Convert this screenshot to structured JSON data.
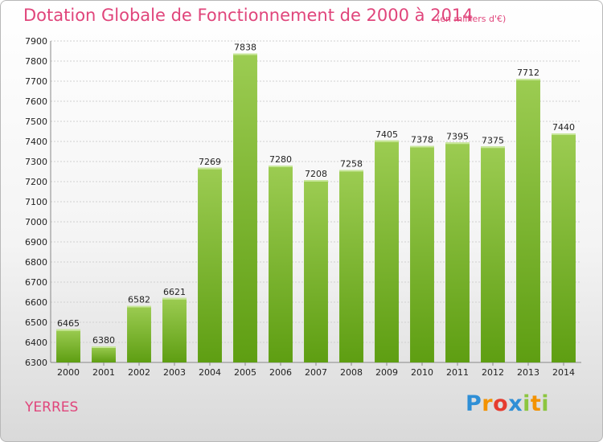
{
  "chart_data": {
    "type": "bar",
    "title": "Dotation Globale de Fonctionnement de 2000 à 2014",
    "subtitle": "(en milliers d'€)",
    "categories": [
      "2000",
      "2001",
      "2002",
      "2003",
      "2004",
      "2005",
      "2006",
      "2007",
      "2008",
      "2009",
      "2010",
      "2011",
      "2012",
      "2013",
      "2014"
    ],
    "values": [
      6465,
      6380,
      6582,
      6621,
      7269,
      7838,
      7280,
      7208,
      7258,
      7405,
      7378,
      7395,
      7375,
      7712,
      7440
    ],
    "ylim": [
      6300,
      7900
    ],
    "yticks": [
      6300,
      6400,
      6500,
      6600,
      6700,
      6800,
      6900,
      7000,
      7100,
      7200,
      7300,
      7400,
      7500,
      7600,
      7700,
      7800,
      7900
    ],
    "grid": true,
    "bar_color": "#8cc63f",
    "bar_color_dark": "#5fa012"
  },
  "location": "YERRES",
  "logo": {
    "letters": [
      "P",
      "r",
      "o",
      "x",
      "i",
      "t",
      "i"
    ],
    "colors": [
      "#2f8fd6",
      "#f39200",
      "#e63c2f",
      "#2f8fd6",
      "#8cc63f",
      "#f39200",
      "#8cc63f"
    ]
  }
}
